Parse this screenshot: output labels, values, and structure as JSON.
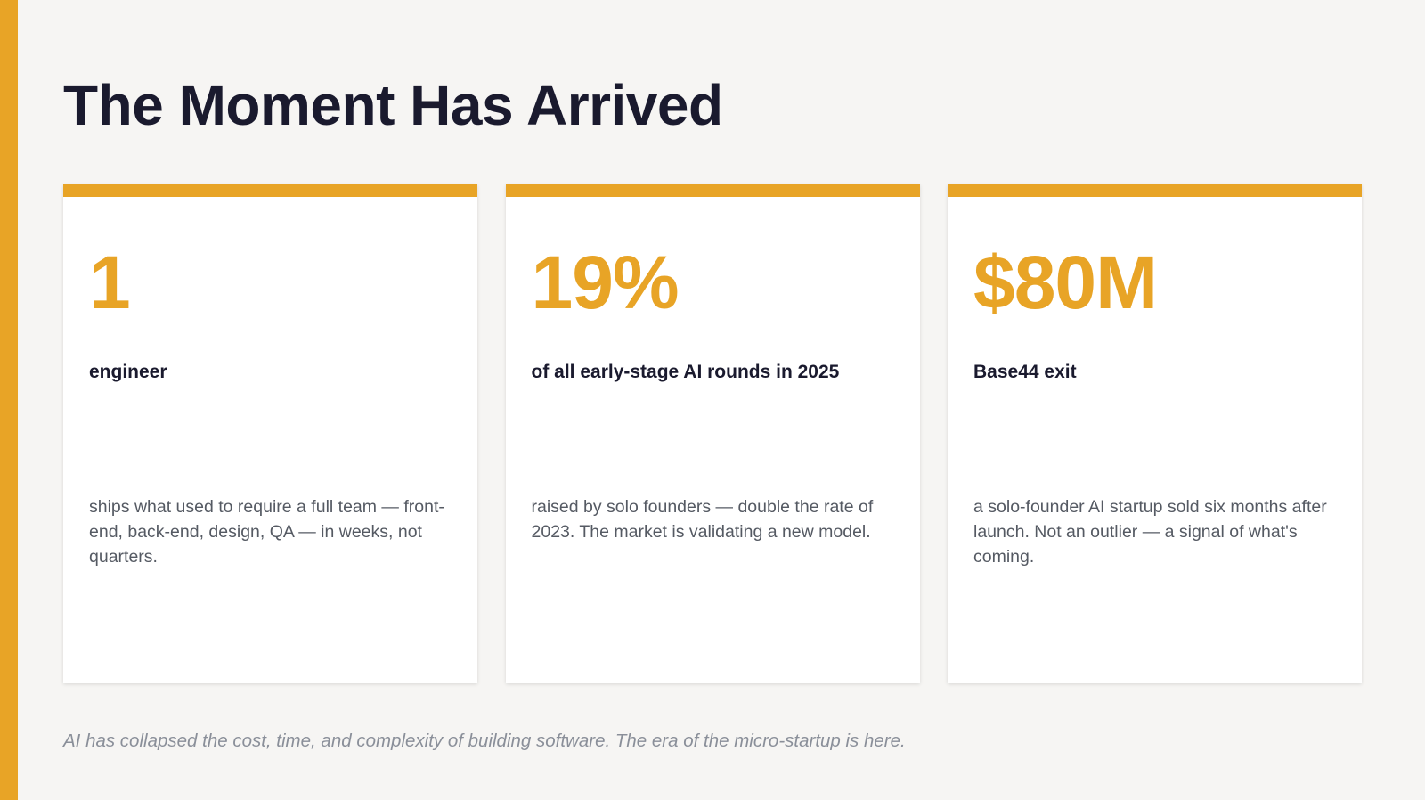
{
  "colors": {
    "accent": "#e8a426",
    "background": "#f6f5f3",
    "title": "#1a1a2e",
    "body_text": "#555a63",
    "footnote": "#8a8f99"
  },
  "slide": {
    "title": "The Moment Has Arrived",
    "footnote": "AI has collapsed the cost, time, and complexity of building software. The era of the micro-startup is here."
  },
  "cards": [
    {
      "value": "1",
      "label": "engineer",
      "description": "ships what used to require a full team — front-end, back-end, design, QA — in weeks, not quarters."
    },
    {
      "value": "19%",
      "label": "of all early-stage AI rounds in 2025",
      "description": "raised by solo founders — double the rate of 2023. The market is validating a new model."
    },
    {
      "value": "$80M",
      "label": "Base44 exit",
      "description": "a solo-founder AI startup sold six months after launch. Not an outlier — a signal of what's coming."
    }
  ]
}
